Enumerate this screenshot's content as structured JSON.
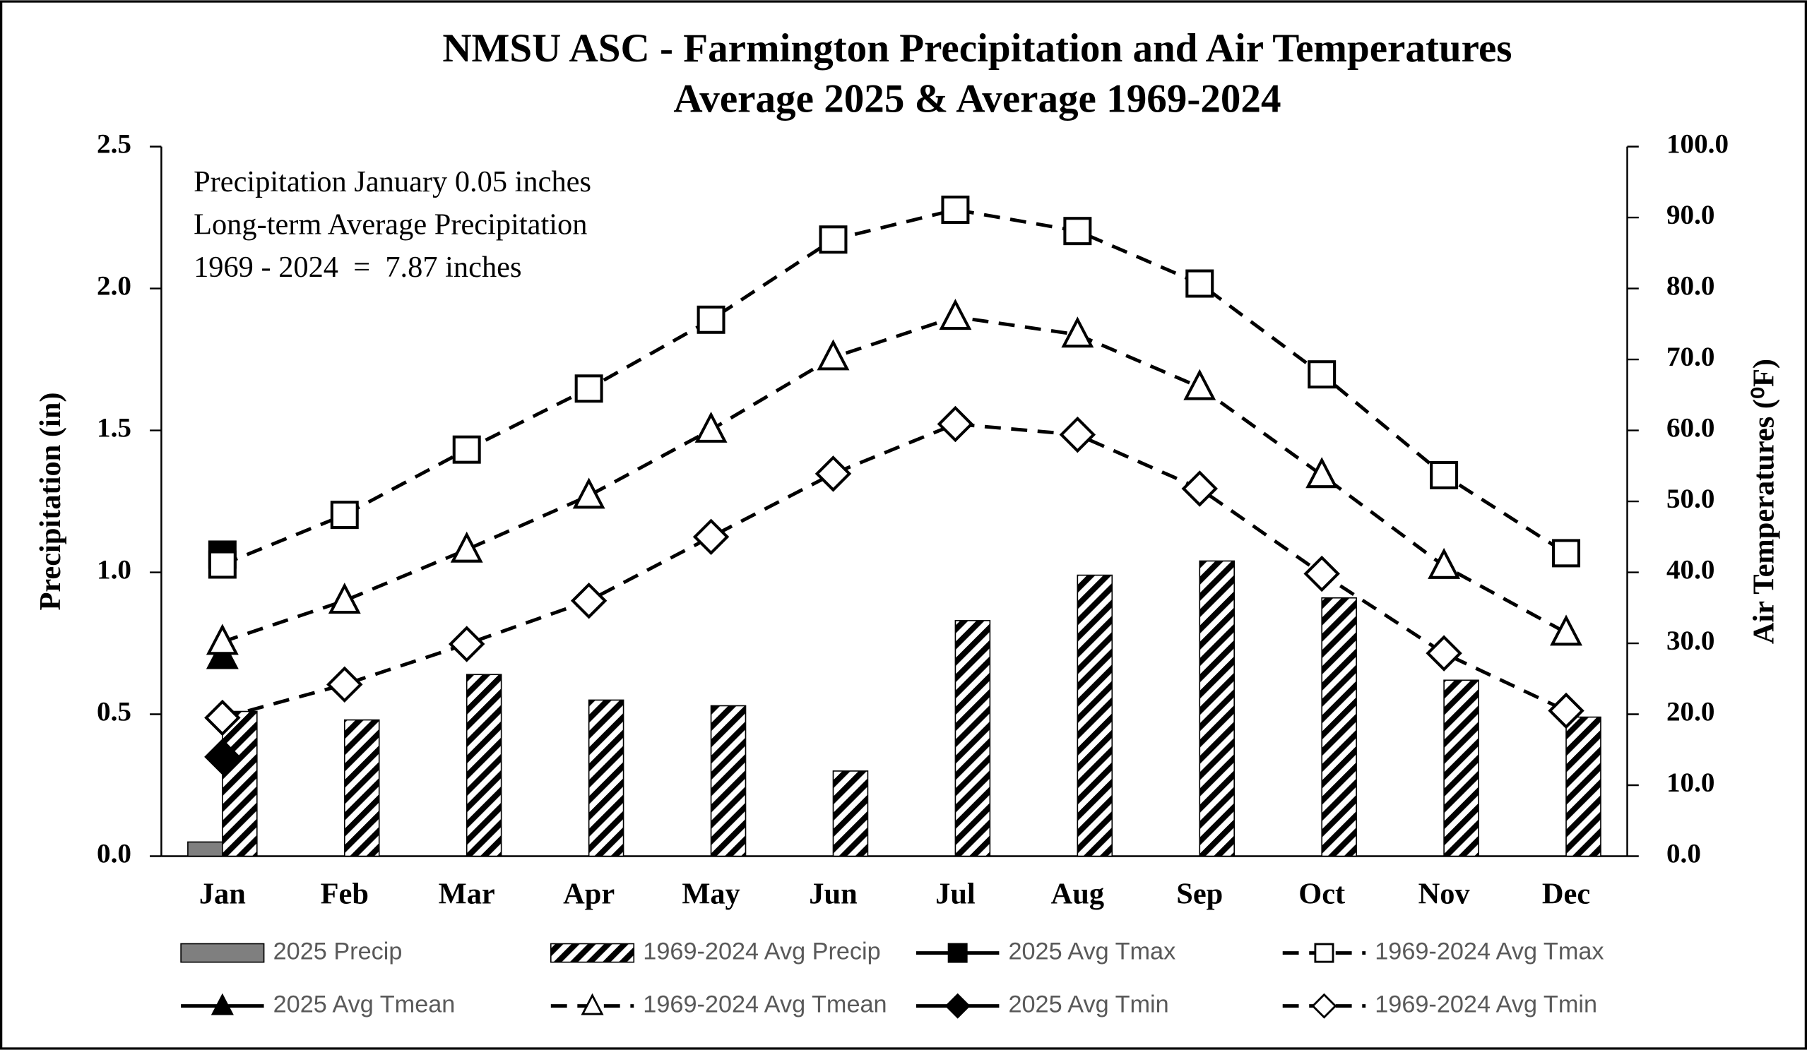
{
  "chart_data": {
    "type": "combo",
    "title": "NMSU ASC - Farmington Precipitation and Air Temperatures",
    "subtitle": "Average 2025 & Average 1969-2024",
    "annotations": [
      "Precipitation January 0.05 inches",
      "Long-term Average Precipitation",
      "1969 - 2024  =  7.87 inches"
    ],
    "ylabel": "Precipitation (in)",
    "y2label": "Air Temperatures (⁰F)",
    "categories": [
      "Jan",
      "Feb",
      "Mar",
      "Apr",
      "May",
      "Jun",
      "Jul",
      "Aug",
      "Sep",
      "Oct",
      "Nov",
      "Dec"
    ],
    "ylim": [
      0,
      2.5
    ],
    "yticks": [
      {
        "value": 0,
        "label": "0.0"
      },
      0.5,
      {
        "value": 1,
        "label": "1.0"
      },
      1.5,
      {
        "value": 2,
        "label": "2.0"
      },
      2.5
    ],
    "y2lim": [
      0,
      100
    ],
    "y2ticks": [
      {
        "value": 0,
        "label": "0.0"
      },
      {
        "value": 10,
        "label": "10.0"
      },
      {
        "value": 20,
        "label": "20.0"
      },
      {
        "value": 30,
        "label": "30.0"
      },
      {
        "value": 40,
        "label": "40.0"
      },
      {
        "value": 50,
        "label": "50.0"
      },
      {
        "value": 60,
        "label": "60.0"
      },
      {
        "value": 70,
        "label": "70.0"
      },
      {
        "value": 80,
        "label": "80.0"
      },
      {
        "value": 90,
        "label": "90.0"
      },
      {
        "value": 100,
        "label": "100.0"
      }
    ],
    "series": [
      {
        "name": "2025 Precip",
        "kind": "bar",
        "color": "#7f7f7f",
        "pattern": "solid",
        "values": [
          0.05,
          null,
          null,
          null,
          null,
          null,
          null,
          null,
          null,
          null,
          null,
          null
        ]
      },
      {
        "name": "1969-2024 Avg Precip",
        "kind": "bar",
        "color": "#000000",
        "pattern": "hatch",
        "values": [
          0.51,
          0.48,
          0.64,
          0.55,
          0.53,
          0.3,
          0.83,
          0.99,
          1.04,
          0.91,
          0.62,
          0.49
        ]
      },
      {
        "name": "2025 Avg Tmax",
        "kind": "line",
        "axis": "y2",
        "color": "#000000",
        "marker": "square",
        "filled": true,
        "dashed": false,
        "values": [
          42.5,
          null,
          null,
          null,
          null,
          null,
          null,
          null,
          null,
          null,
          null,
          null
        ]
      },
      {
        "name": "1969-2024 Avg Tmax",
        "kind": "line",
        "axis": "y2",
        "color": "#000000",
        "marker": "square",
        "filled": false,
        "dashed": true,
        "values": [
          41.1,
          48.1,
          57.3,
          65.9,
          75.6,
          86.9,
          91.1,
          88.1,
          80.7,
          67.9,
          53.7,
          42.7
        ]
      },
      {
        "name": "2025 Avg Tmean",
        "kind": "line",
        "axis": "y2",
        "color": "#000000",
        "marker": "triangle",
        "filled": true,
        "dashed": false,
        "values": [
          28.2,
          null,
          null,
          null,
          null,
          null,
          null,
          null,
          null,
          null,
          null,
          null
        ]
      },
      {
        "name": "1969-2024 Avg Tmean",
        "kind": "line",
        "axis": "y2",
        "color": "#000000",
        "marker": "triangle",
        "filled": false,
        "dashed": true,
        "values": [
          30.2,
          36.0,
          43.2,
          50.8,
          60.1,
          70.3,
          76.0,
          73.5,
          66.1,
          53.7,
          40.9,
          31.5
        ]
      },
      {
        "name": "2025 Avg Tmin",
        "kind": "line",
        "axis": "y2",
        "color": "#000000",
        "marker": "diamond",
        "filled": true,
        "dashed": false,
        "values": [
          14.0,
          null,
          null,
          null,
          null,
          null,
          null,
          null,
          null,
          null,
          null,
          null
        ]
      },
      {
        "name": "1969-2024 Avg Tmin",
        "kind": "line",
        "axis": "y2",
        "color": "#000000",
        "marker": "diamond",
        "filled": false,
        "dashed": true,
        "values": [
          19.5,
          24.2,
          29.9,
          36.0,
          45.0,
          53.9,
          60.9,
          59.4,
          51.8,
          39.8,
          28.6,
          20.5
        ]
      }
    ]
  }
}
